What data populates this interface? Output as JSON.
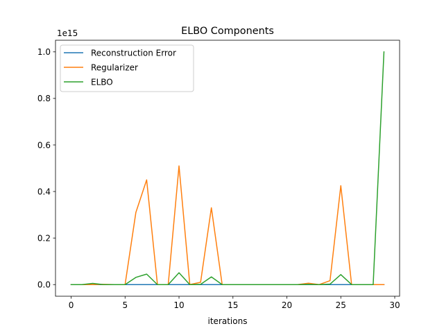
{
  "chart_data": {
    "type": "line",
    "title": "ELBO Components",
    "xlabel": "iterations",
    "ylabel": "",
    "y_offset_label": "1e15",
    "xlim": [
      -1.45,
      30.45
    ],
    "ylim": [
      -0.05,
      1.05
    ],
    "x_ticks": [
      0,
      5,
      10,
      15,
      20,
      25,
      30
    ],
    "x_tick_labels": [
      "0",
      "5",
      "10",
      "15",
      "20",
      "25",
      "30"
    ],
    "y_ticks": [
      0.0,
      0.2,
      0.4,
      0.6,
      0.8,
      1.0
    ],
    "y_tick_labels": [
      "0.0",
      "0.2",
      "0.4",
      "0.6",
      "0.8",
      "1.0"
    ],
    "grid": false,
    "legend_position": "top-left",
    "x": [
      0,
      1,
      2,
      3,
      4,
      5,
      6,
      7,
      8,
      9,
      10,
      11,
      12,
      13,
      14,
      15,
      16,
      17,
      18,
      19,
      20,
      21,
      22,
      23,
      24,
      25,
      26,
      27,
      28,
      29
    ],
    "series": [
      {
        "name": "Reconstruction Error",
        "color": "#1f77b4",
        "values": [
          0,
          0,
          0,
          0,
          0,
          0,
          0,
          0,
          0,
          0,
          0,
          0,
          0,
          0,
          0,
          0,
          0,
          0,
          0,
          0,
          0,
          0,
          0,
          0,
          0,
          0,
          0,
          0,
          0,
          0
        ]
      },
      {
        "name": "Regularizer",
        "color": "#ff7f0e",
        "values": [
          0,
          0,
          0,
          0.001,
          0,
          0,
          0.31,
          0.45,
          0,
          0,
          0.51,
          0,
          0.01,
          0.33,
          0,
          0,
          0,
          0,
          0,
          0,
          0,
          0,
          0.006,
          0,
          0.017,
          0.425,
          0,
          0,
          0,
          0
        ]
      },
      {
        "name": "ELBO",
        "color": "#2ca02c",
        "values": [
          0,
          0,
          0.005,
          0,
          0,
          0,
          0.031,
          0.045,
          0,
          0,
          0.051,
          0,
          0.001,
          0.033,
          0,
          0,
          0,
          0,
          0,
          0,
          0,
          0,
          0.001,
          0,
          0.002,
          0.043,
          0,
          0,
          0,
          1.0
        ]
      }
    ]
  }
}
